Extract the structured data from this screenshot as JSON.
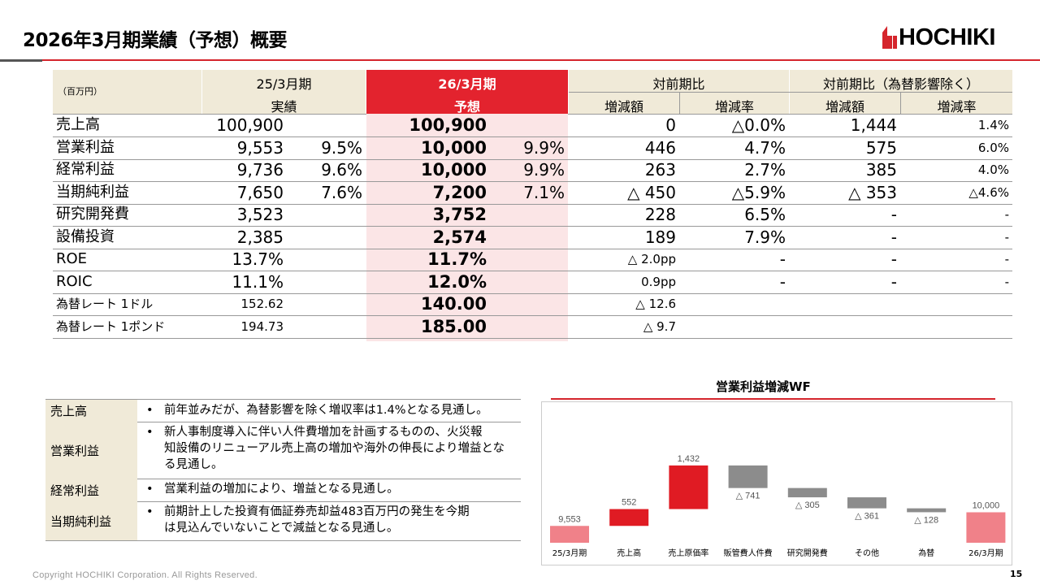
{
  "title": "2026年3月期業績（予想）概要",
  "logo": {
    "text": "HOCHIKI",
    "color": "#d5252c"
  },
  "table": {
    "unit": "（百万円）",
    "col_prev": "25/3月期",
    "col_prev_sub": "実績",
    "col_cur": "26/3月期",
    "col_cur_sub": "予想",
    "col_yoy": "対前期比",
    "col_yoy_fx": "対前期比（為替影響除く）",
    "sub_change": "増減額",
    "sub_rate": "増減率",
    "sub_change2": "増減額",
    "sub_rate2": "増減率",
    "rows": [
      {
        "label": "売上高",
        "prev": "100,900",
        "prev_pct": "",
        "cur": "100,900",
        "cur_pct": "",
        "chg": "0",
        "rate": "△0.0%",
        "chg2": "1,444",
        "rate2": "1.4%"
      },
      {
        "label": "営業利益",
        "prev": "9,553",
        "prev_pct": "9.5%",
        "cur": "10,000",
        "cur_pct": "9.9%",
        "chg": "446",
        "rate": "4.7%",
        "chg2": "575",
        "rate2": "6.0%"
      },
      {
        "label": "経常利益",
        "prev": "9,736",
        "prev_pct": "9.6%",
        "cur": "10,000",
        "cur_pct": "9.9%",
        "chg": "263",
        "rate": "2.7%",
        "chg2": "385",
        "rate2": "4.0%"
      },
      {
        "label": "当期純利益",
        "prev": "7,650",
        "prev_pct": "7.6%",
        "cur": "7,200",
        "cur_pct": "7.1%",
        "chg": "△ 450",
        "rate": "△5.9%",
        "chg2": "△ 353",
        "rate2": "△4.6%"
      },
      {
        "label": "研究開発費",
        "prev": "3,523",
        "prev_pct": "",
        "cur": "3,752",
        "cur_pct": "",
        "chg": "228",
        "rate": "6.5%",
        "chg2": "-",
        "rate2": "-"
      },
      {
        "label": "設備投資",
        "prev": "2,385",
        "prev_pct": "",
        "cur": "2,574",
        "cur_pct": "",
        "chg": "189",
        "rate": "7.9%",
        "chg2": "-",
        "rate2": "-"
      },
      {
        "label": "ROE",
        "prev": "13.7%",
        "prev_pct": "",
        "cur": "11.7%",
        "cur_pct": "",
        "chg": "△ 2.0pp",
        "rate": "-",
        "chg2": "-",
        "rate2": "-"
      },
      {
        "label": "ROIC",
        "prev": "11.1%",
        "prev_pct": "",
        "cur": "12.0%",
        "cur_pct": "",
        "chg": "0.9pp",
        "rate": "-",
        "chg2": "-",
        "rate2": "-"
      },
      {
        "label": "為替レート 1ドル",
        "prev": "152.62",
        "prev_pct": "",
        "cur": "140.00",
        "cur_pct": "",
        "chg": "△ 12.6",
        "rate": "",
        "chg2": "",
        "rate2": ""
      },
      {
        "label": "為替レート 1ポンド",
        "prev": "194.73",
        "prev_pct": "",
        "cur": "185.00",
        "cur_pct": "",
        "chg": "△ 9.7",
        "rate": "",
        "chg2": "",
        "rate2": ""
      }
    ]
  },
  "notes": [
    {
      "label": "売上高",
      "lines": [
        "前年並みだが、為替影響を除く増収率は1.4%となる見通し。"
      ]
    },
    {
      "label": "営業利益",
      "lines": [
        "新人事制度導入に伴い人件費増加を計画するものの、火災報",
        "知設備のリニューアル売上高の増加や海外の伸長により増益とな",
        "る見通し。"
      ]
    },
    {
      "label": "経常利益",
      "lines": [
        "営業利益の増加により、増益となる見通し。"
      ]
    },
    {
      "label": "当期純利益",
      "lines": [
        "前期計上した投資有価証券売却益483百万円の発生を今期",
        "は見込んでいないことで減益となる見通し。"
      ]
    }
  ],
  "chart_data": {
    "type": "bar",
    "title": "営業利益増減WF",
    "categories": [
      "25/3月期",
      "売上高",
      "売上原価率",
      "販管費人件費",
      "研究開発費",
      "その他",
      "為替",
      "26/3月期"
    ],
    "values": [
      9553,
      552,
      1432,
      -741,
      -305,
      -361,
      -128,
      10000
    ],
    "labels": [
      "9,553",
      "552",
      "1,432",
      "△ 741",
      "△ 305",
      "△ 361",
      "△ 128",
      "10,000"
    ],
    "kinds": [
      "total",
      "delta",
      "delta",
      "delta",
      "delta",
      "delta",
      "delta",
      "total"
    ],
    "colors": {
      "total": "#f08189",
      "increase": "#e01b23",
      "decrease": "#8c8c8c"
    }
  },
  "footer": "Copyright HOCHIKI Corporation. All Rights Reserved.",
  "page_number": "15"
}
